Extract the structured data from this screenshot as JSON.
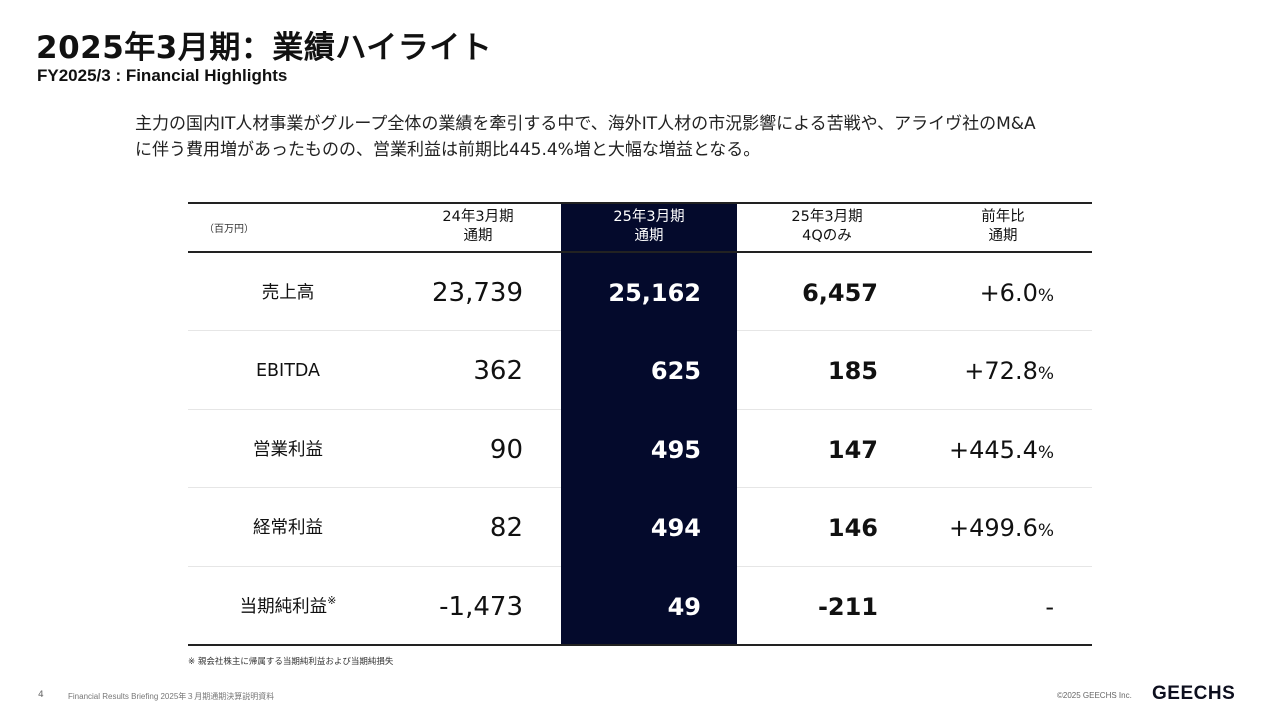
{
  "header": {
    "title": "2025年3月期：業績ハイライト",
    "subtitle": "FY2025/3 : Financial Highlights"
  },
  "summary": {
    "line1": "主力の国内IT人材事業がグループ全体の業績を牽引する中で、海外IT人材の市況影響による苦戦や、アライヴ社のM&A",
    "line2": "に伴う費用増があったものの、営業利益は前期比445.4%増と大幅な増益となる。"
  },
  "table": {
    "unit": "（百万円）",
    "columns": [
      {
        "line1": "24年3月期",
        "line2": "通期"
      },
      {
        "line1": "25年3月期",
        "line2": "通期"
      },
      {
        "line1": "25年3月期",
        "line2": "4Qのみ"
      },
      {
        "line1": "前年比",
        "line2": "通期"
      }
    ],
    "rows": [
      {
        "label": "売上高",
        "mark": "",
        "fy24": "23,739",
        "fy25": "25,162",
        "q4": "6,457",
        "yoy_sign": "+",
        "yoy_num": "6.0",
        "yoy_pct": "%"
      },
      {
        "label": "EBITDA",
        "mark": "",
        "fy24": "362",
        "fy25": "625",
        "q4": "185",
        "yoy_sign": "+",
        "yoy_num": "72.8",
        "yoy_pct": "%"
      },
      {
        "label": "営業利益",
        "mark": "",
        "fy24": "90",
        "fy25": "495",
        "q4": "147",
        "yoy_sign": "+",
        "yoy_num": "445.4",
        "yoy_pct": "%"
      },
      {
        "label": "経常利益",
        "mark": "",
        "fy24": "82",
        "fy25": "494",
        "q4": "146",
        "yoy_sign": "+",
        "yoy_num": "499.6",
        "yoy_pct": "%"
      },
      {
        "label": "当期純利益",
        "mark": "※",
        "fy24": "-1,473",
        "fy25": "49",
        "q4": "-211",
        "yoy_sign": "",
        "yoy_num": "-",
        "yoy_pct": ""
      }
    ],
    "highlight_color": "#040a2c"
  },
  "footnote": "※ 親会社株主に帰属する当期純利益および当期純損失",
  "footer": {
    "page": "4",
    "document": "Financial Results Briefing 2025年３月期通期決算説明資料",
    "copyright": "©2025 GEECHS Inc.",
    "logo": "GEECHS"
  }
}
